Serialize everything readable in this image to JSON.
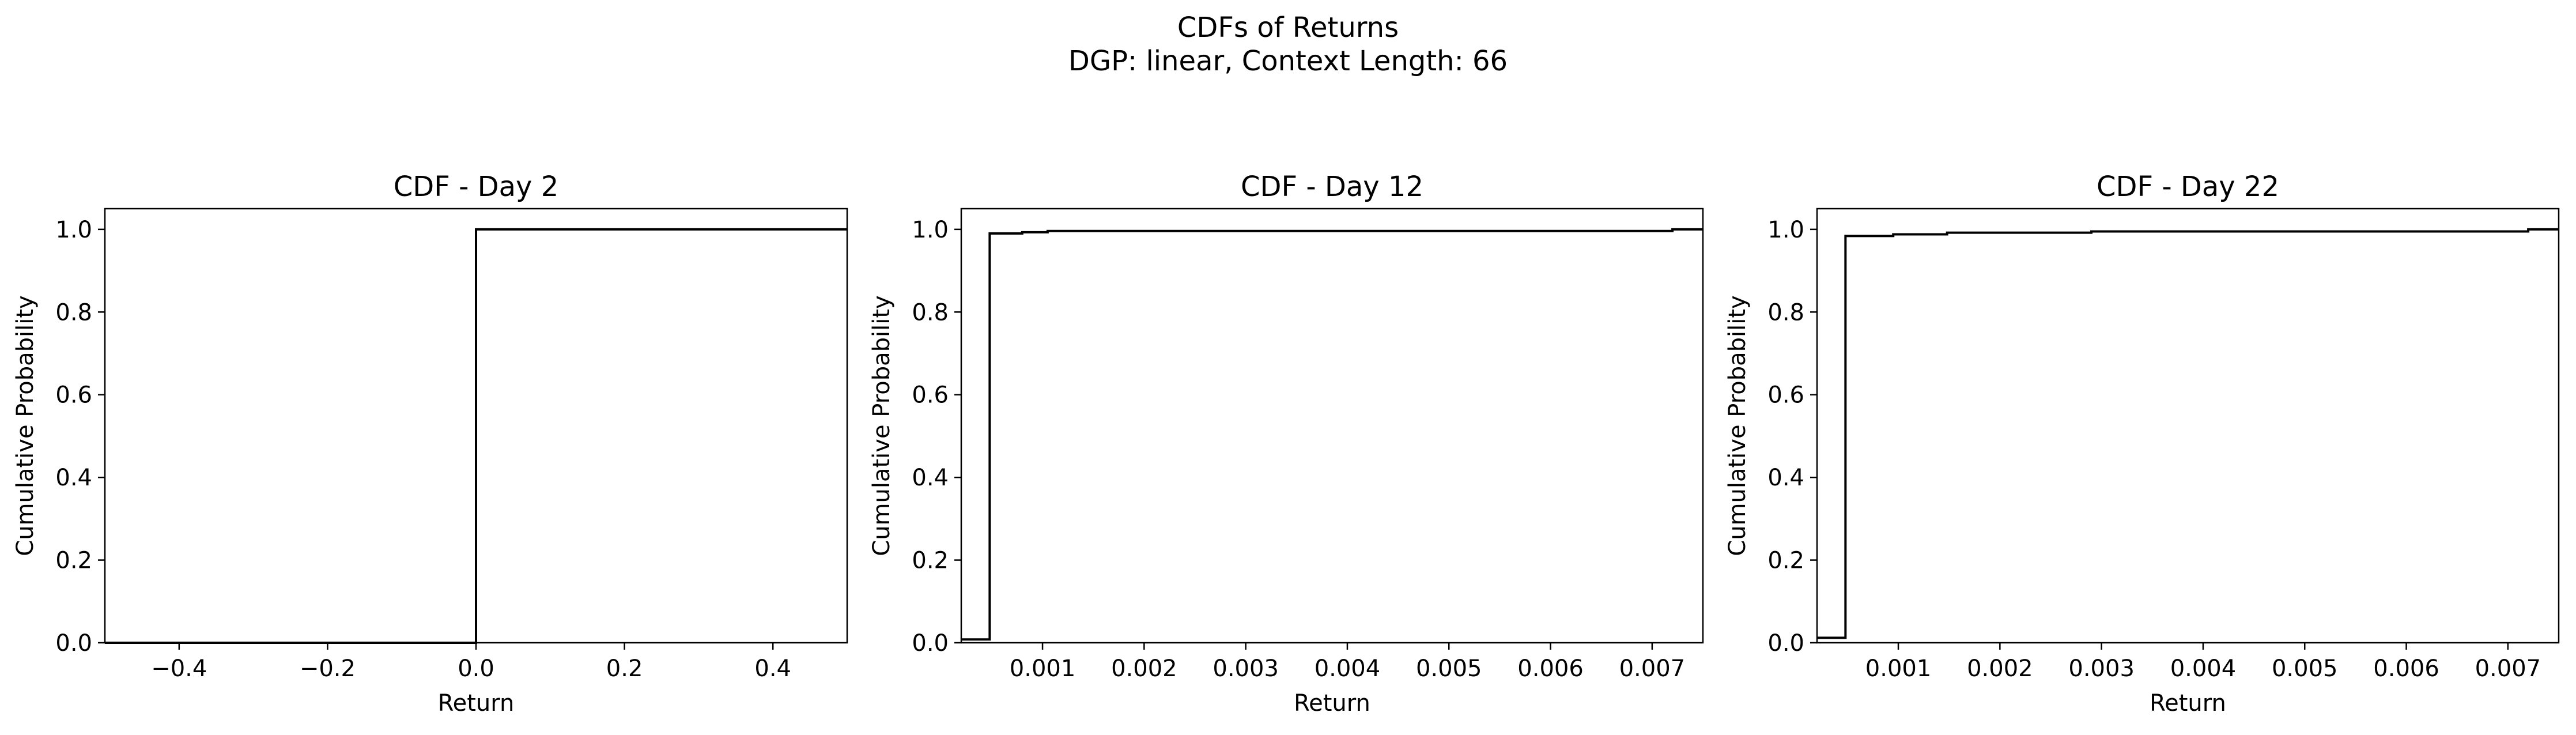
{
  "figure": {
    "title_line1": "CDFs of Returns",
    "title_line2": "DGP: linear, Context Length: 66"
  },
  "colors": {
    "line": "#000000",
    "axes": "#000000",
    "background": "#ffffff"
  },
  "chart_data": [
    {
      "type": "line",
      "subtype": "ecdf-step",
      "title": "CDF - Day 2",
      "xlabel": "Return",
      "ylabel": "Cumulative Probability",
      "xlim": [
        -0.5,
        0.5
      ],
      "ylim": [
        0,
        1.05
      ],
      "xticks": [
        -0.4,
        -0.2,
        0.0,
        0.2,
        0.4
      ],
      "xtick_labels": [
        "−0.4",
        "−0.2",
        "0.0",
        "0.2",
        "0.4"
      ],
      "yticks": [
        0.0,
        0.2,
        0.4,
        0.6,
        0.8,
        1.0
      ],
      "ytick_labels": [
        "0.0",
        "0.2",
        "0.4",
        "0.6",
        "0.8",
        "1.0"
      ],
      "grid": false,
      "x": [
        -0.5,
        0.0,
        0.0,
        0.5
      ],
      "y": [
        0.0,
        0.0,
        1.0,
        1.0
      ]
    },
    {
      "type": "line",
      "subtype": "ecdf-step",
      "title": "CDF - Day 12",
      "xlabel": "Return",
      "ylabel": "Cumulative Probability",
      "xlim": [
        0.0002,
        0.0075
      ],
      "ylim": [
        0,
        1.05
      ],
      "xticks": [
        0.001,
        0.002,
        0.003,
        0.004,
        0.005,
        0.006,
        0.007
      ],
      "xtick_labels": [
        "0.001",
        "0.002",
        "0.003",
        "0.004",
        "0.005",
        "0.006",
        "0.007"
      ],
      "yticks": [
        0.0,
        0.2,
        0.4,
        0.6,
        0.8,
        1.0
      ],
      "ytick_labels": [
        "0.0",
        "0.2",
        "0.4",
        "0.6",
        "0.8",
        "1.0"
      ],
      "grid": false,
      "x": [
        0.0002,
        0.00048,
        0.00048,
        0.0008,
        0.0008,
        0.00105,
        0.00105,
        0.0072,
        0.0072,
        0.0075
      ],
      "y": [
        0.008,
        0.008,
        0.99,
        0.99,
        0.993,
        0.993,
        0.996,
        0.996,
        1.0,
        1.0
      ]
    },
    {
      "type": "line",
      "subtype": "ecdf-step",
      "title": "CDF - Day 22",
      "xlabel": "Return",
      "ylabel": "Cumulative Probability",
      "xlim": [
        0.0002,
        0.0075
      ],
      "ylim": [
        0,
        1.05
      ],
      "xticks": [
        0.001,
        0.002,
        0.003,
        0.004,
        0.005,
        0.006,
        0.007
      ],
      "xtick_labels": [
        "0.001",
        "0.002",
        "0.003",
        "0.004",
        "0.005",
        "0.006",
        "0.007"
      ],
      "yticks": [
        0.0,
        0.2,
        0.4,
        0.6,
        0.8,
        1.0
      ],
      "ytick_labels": [
        "0.0",
        "0.2",
        "0.4",
        "0.6",
        "0.8",
        "1.0"
      ],
      "grid": false,
      "x": [
        0.0002,
        0.00048,
        0.00048,
        0.00095,
        0.00095,
        0.00148,
        0.00148,
        0.0029,
        0.0029,
        0.0072,
        0.0072,
        0.0075
      ],
      "y": [
        0.012,
        0.012,
        0.984,
        0.984,
        0.988,
        0.988,
        0.992,
        0.992,
        0.995,
        0.995,
        1.0,
        1.0
      ]
    }
  ]
}
